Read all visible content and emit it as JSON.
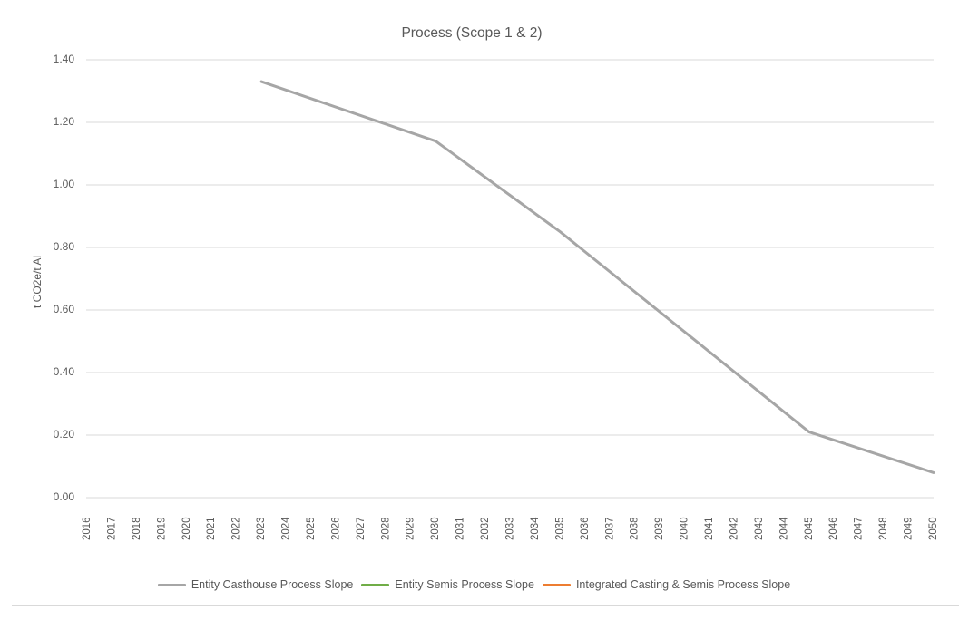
{
  "chart_data": {
    "type": "line",
    "title": "Process (Scope 1 & 2)",
    "xlabel": "",
    "ylabel": "t CO2e/t Al",
    "ylim": [
      0,
      1.4
    ],
    "ytick_step": 0.2,
    "ytick_labels": [
      "0.00",
      "0.20",
      "0.40",
      "0.60",
      "0.80",
      "1.00",
      "1.20",
      "1.40"
    ],
    "categories": [
      "2016",
      "2017",
      "2018",
      "2019",
      "2020",
      "2021",
      "2022",
      "2023",
      "2024",
      "2025",
      "2026",
      "2027",
      "2028",
      "2029",
      "2030",
      "2031",
      "2032",
      "2033",
      "2034",
      "2035",
      "2036",
      "2037",
      "2038",
      "2039",
      "2040",
      "2041",
      "2042",
      "2043",
      "2044",
      "2045",
      "2046",
      "2047",
      "2048",
      "2049",
      "2050"
    ],
    "grid": true,
    "gridline_color": "#d9d9d9",
    "text_color": "#595959",
    "legend_position": "bottom",
    "series": [
      {
        "name": "Entity Casthouse Process Slope",
        "color": "#a6a6a6",
        "visible": true,
        "points": {
          "x": [
            2023,
            2030,
            2035,
            2045,
            2050
          ],
          "y": [
            1.33,
            1.14,
            0.85,
            0.21,
            0.08
          ]
        }
      },
      {
        "name": "Entity Semis Process Slope",
        "color": "#70ad47",
        "visible": false,
        "points": {
          "x": [],
          "y": []
        }
      },
      {
        "name": "Integrated Casting & Semis Process Slope",
        "color": "#ed7d31",
        "visible": false,
        "points": {
          "x": [],
          "y": []
        }
      }
    ]
  }
}
